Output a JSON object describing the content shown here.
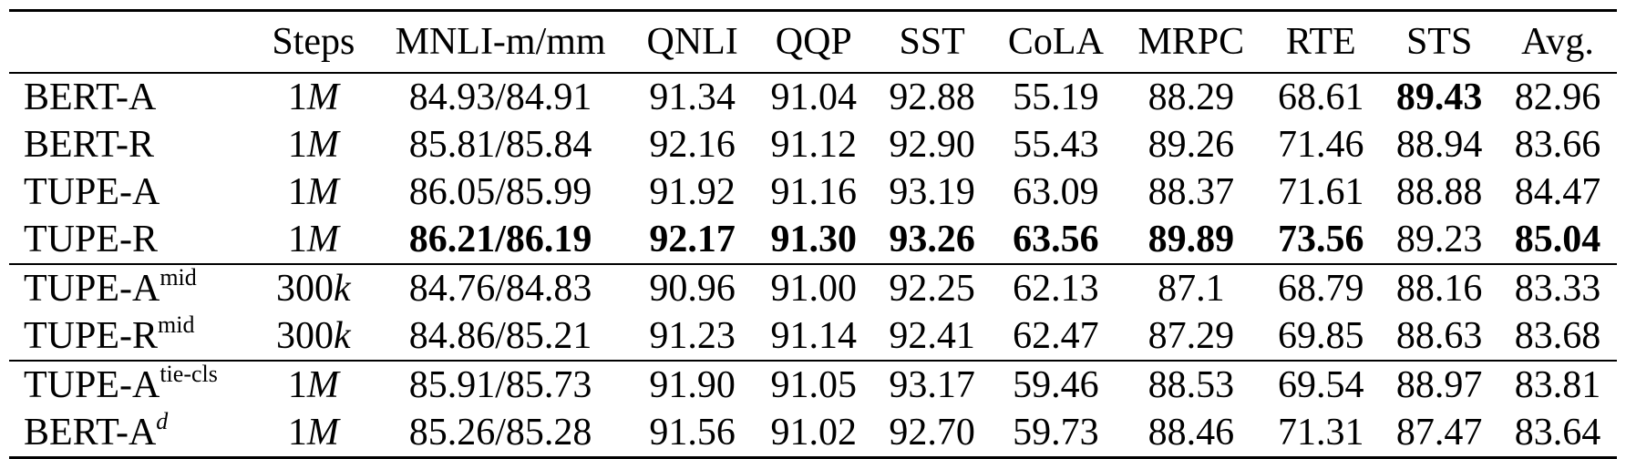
{
  "table": {
    "header": [
      "",
      "Steps",
      "MNLI-m/mm",
      "QNLI",
      "QQP",
      "SST",
      "CoLA",
      "MRPC",
      "RTE",
      "STS",
      "Avg."
    ],
    "rows": [
      {
        "model": "BERT-A",
        "sup": "",
        "sup_italic": false,
        "steps_num": "1",
        "steps_unit": "M",
        "group_start": false,
        "cells": [
          "84.93/84.91",
          "91.34",
          "91.04",
          "92.88",
          "55.19",
          "88.29",
          "68.61",
          "89.43",
          "82.96"
        ],
        "bold": [
          false,
          false,
          false,
          false,
          false,
          false,
          false,
          true,
          false
        ]
      },
      {
        "model": "BERT-R",
        "sup": "",
        "sup_italic": false,
        "steps_num": "1",
        "steps_unit": "M",
        "group_start": false,
        "cells": [
          "85.81/85.84",
          "92.16",
          "91.12",
          "92.90",
          "55.43",
          "89.26",
          "71.46",
          "88.94",
          "83.66"
        ],
        "bold": [
          false,
          false,
          false,
          false,
          false,
          false,
          false,
          false,
          false
        ]
      },
      {
        "model": "TUPE-A",
        "sup": "",
        "sup_italic": false,
        "steps_num": "1",
        "steps_unit": "M",
        "group_start": false,
        "cells": [
          "86.05/85.99",
          "91.92",
          "91.16",
          "93.19",
          "63.09",
          "88.37",
          "71.61",
          "88.88",
          "84.47"
        ],
        "bold": [
          false,
          false,
          false,
          false,
          false,
          false,
          false,
          false,
          false
        ]
      },
      {
        "model": "TUPE-R",
        "sup": "",
        "sup_italic": false,
        "steps_num": "1",
        "steps_unit": "M",
        "group_start": false,
        "cells": [
          "86.21/86.19",
          "92.17",
          "91.30",
          "93.26",
          "63.56",
          "89.89",
          "73.56",
          "89.23",
          "85.04"
        ],
        "bold": [
          true,
          true,
          true,
          true,
          true,
          true,
          true,
          false,
          true
        ]
      },
      {
        "model": "TUPE-A",
        "sup": "mid",
        "sup_italic": false,
        "steps_num": "300",
        "steps_unit": "k",
        "group_start": true,
        "cells": [
          "84.76/84.83",
          "90.96",
          "91.00",
          "92.25",
          "62.13",
          "87.1",
          "68.79",
          "88.16",
          "83.33"
        ],
        "bold": [
          false,
          false,
          false,
          false,
          false,
          false,
          false,
          false,
          false
        ]
      },
      {
        "model": "TUPE-R",
        "sup": "mid",
        "sup_italic": false,
        "steps_num": "300",
        "steps_unit": "k",
        "group_start": false,
        "cells": [
          "84.86/85.21",
          "91.23",
          "91.14",
          "92.41",
          "62.47",
          "87.29",
          "69.85",
          "88.63",
          "83.68"
        ],
        "bold": [
          false,
          false,
          false,
          false,
          false,
          false,
          false,
          false,
          false
        ]
      },
      {
        "model": "TUPE-A",
        "sup": "tie-cls",
        "sup_italic": false,
        "steps_num": "1",
        "steps_unit": "M",
        "group_start": true,
        "cells": [
          "85.91/85.73",
          "91.90",
          "91.05",
          "93.17",
          "59.46",
          "88.53",
          "69.54",
          "88.97",
          "83.81"
        ],
        "bold": [
          false,
          false,
          false,
          false,
          false,
          false,
          false,
          false,
          false
        ]
      },
      {
        "model": "BERT-A",
        "sup": "d",
        "sup_italic": true,
        "steps_num": "1",
        "steps_unit": "M",
        "group_start": false,
        "cells": [
          "85.26/85.28",
          "91.56",
          "91.02",
          "92.70",
          "59.73",
          "88.46",
          "71.31",
          "87.47",
          "83.64"
        ],
        "bold": [
          false,
          false,
          false,
          false,
          false,
          false,
          false,
          false,
          false
        ]
      }
    ]
  }
}
